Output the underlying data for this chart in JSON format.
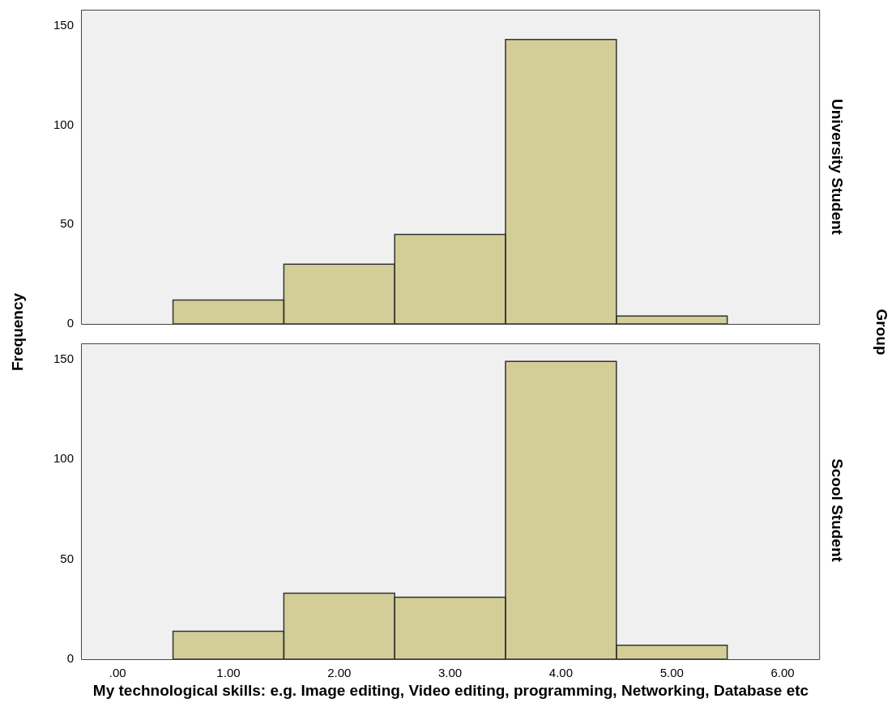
{
  "chart_data": [
    {
      "type": "histogram",
      "y2label": "University Student",
      "ylabel": "Frequency",
      "annotations": [
        "Group"
      ],
      "bins": [
        0.5,
        1.5,
        2.5,
        3.5,
        4.5,
        5.5
      ],
      "values": [
        12,
        30,
        45,
        143,
        4
      ],
      "color": "#d3ce97",
      "xlim": [
        -0.33,
        6.33
      ],
      "ylim": [
        0,
        158
      ],
      "yticks": [
        0,
        50,
        100,
        150
      ],
      "tick_labels": "y"
    },
    {
      "type": "histogram",
      "y2label": "Scool Student",
      "xlabel": "My technological skills: e.g. Image editing, Video editing, programming, Networking, Database etc",
      "bins": [
        0.5,
        1.5,
        2.5,
        3.5,
        4.5,
        5.5
      ],
      "values": [
        14,
        33,
        31,
        149,
        7
      ],
      "color": "#d3ce97",
      "xlim": [
        -0.33,
        6.33
      ],
      "ylim": [
        0,
        158
      ],
      "xticks": [
        {
          "value": 0,
          "label": ".00"
        },
        {
          "value": 1,
          "label": "1.00"
        },
        {
          "value": 2,
          "label": "2.00"
        },
        {
          "value": 3,
          "label": "3.00"
        },
        {
          "value": 4,
          "label": "4.00"
        },
        {
          "value": 5,
          "label": "5.00"
        },
        {
          "value": 6,
          "label": "6.00"
        }
      ],
      "yticks": [
        0,
        50,
        100,
        150
      ]
    }
  ]
}
